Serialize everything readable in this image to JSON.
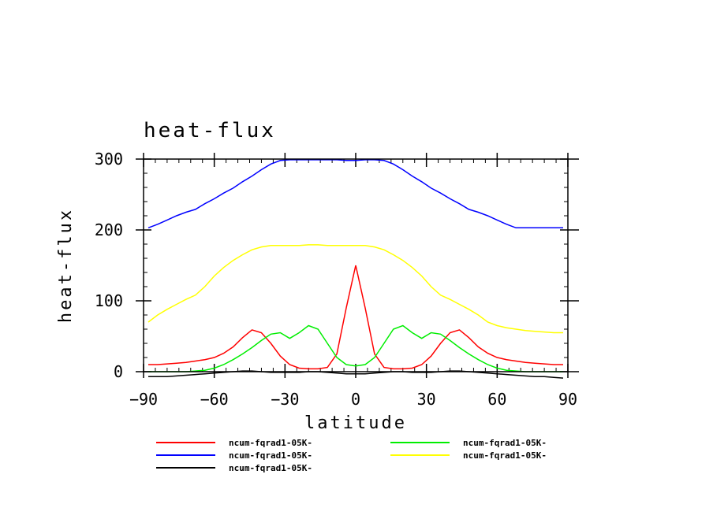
{
  "chart_data": {
    "type": "line",
    "title": "heat-flux",
    "xlabel": "latitude",
    "ylabel": "heat-flux",
    "xlim": [
      -90,
      90
    ],
    "ylim": [
      0,
      300
    ],
    "xticks": [
      -90,
      -60,
      -30,
      0,
      30,
      60,
      90
    ],
    "yticks": [
      0,
      100,
      200,
      300
    ],
    "xtick_labels": [
      "−90",
      "−60",
      "−30",
      "0",
      "30",
      "60",
      "90"
    ],
    "ytick_labels": [
      "0",
      "100",
      "200",
      "300"
    ],
    "grid": false,
    "legend_position": "bottom",
    "x": [
      -88,
      -84,
      -80,
      -76,
      -72,
      -68,
      -64,
      -60,
      -56,
      -52,
      -48,
      -44,
      -40,
      -36,
      -32,
      -28,
      -24,
      -20,
      -16,
      -12,
      -8,
      -4,
      0,
      4,
      8,
      12,
      16,
      20,
      24,
      28,
      32,
      36,
      40,
      44,
      48,
      52,
      56,
      60,
      64,
      68,
      72,
      76,
      80,
      84,
      88
    ],
    "series": [
      {
        "name": "ncum-fqrad1-05K-",
        "color": "#ff0000",
        "values": [
          10,
          10,
          11,
          12,
          13,
          15,
          17,
          20,
          26,
          35,
          48,
          59,
          55,
          40,
          22,
          10,
          5,
          4,
          4,
          6,
          25,
          90,
          150,
          90,
          25,
          6,
          4,
          4,
          5,
          10,
          22,
          40,
          55,
          59,
          48,
          35,
          26,
          20,
          17,
          15,
          13,
          12,
          11,
          10,
          10
        ]
      },
      {
        "name": "ncum-fqrad1-05K-",
        "color": "#0000ff",
        "values": [
          203,
          208,
          214,
          220,
          225,
          229,
          237,
          244,
          252,
          259,
          268,
          276,
          285,
          293,
          298,
          299,
          299,
          299,
          299,
          299,
          299,
          298,
          298,
          299,
          299,
          298,
          293,
          285,
          276,
          268,
          259,
          252,
          244,
          237,
          229,
          225,
          220,
          214,
          208,
          203,
          203,
          203,
          203,
          203,
          203
        ]
      },
      {
        "name": "ncum-fqrad1-05K-",
        "color": "#000000",
        "values": [
          -7,
          -7,
          -7,
          -6,
          -5,
          -4,
          -3,
          -2,
          -1,
          0,
          1,
          1,
          0,
          -1,
          -1,
          -1,
          -1,
          0,
          0,
          -1,
          -2,
          -3,
          -3,
          -3,
          -2,
          -1,
          0,
          0,
          -1,
          -1,
          -1,
          0,
          1,
          1,
          0,
          -1,
          -2,
          -3,
          -4,
          -5,
          -6,
          -7,
          -7,
          -8,
          -9
        ]
      },
      {
        "name": "ncum-fqrad1-05K-",
        "color": "#00ee00",
        "values": [
          0,
          0,
          0,
          0,
          0,
          1,
          2,
          5,
          10,
          17,
          25,
          34,
          44,
          53,
          55,
          47,
          55,
          65,
          60,
          40,
          20,
          10,
          8,
          10,
          20,
          40,
          60,
          65,
          55,
          47,
          55,
          53,
          44,
          34,
          25,
          17,
          10,
          5,
          2,
          1,
          0,
          0,
          0,
          0,
          0
        ]
      },
      {
        "name": "ncum-fqrad1-05K-",
        "color": "#ffff00",
        "values": [
          70,
          80,
          88,
          95,
          102,
          108,
          120,
          135,
          147,
          157,
          165,
          172,
          176,
          178,
          178,
          178,
          178,
          179,
          179,
          178,
          178,
          178,
          178,
          178,
          176,
          172,
          165,
          157,
          147,
          135,
          120,
          108,
          102,
          95,
          88,
          80,
          70,
          65,
          62,
          60,
          58,
          57,
          56,
          55,
          55
        ]
      }
    ]
  }
}
